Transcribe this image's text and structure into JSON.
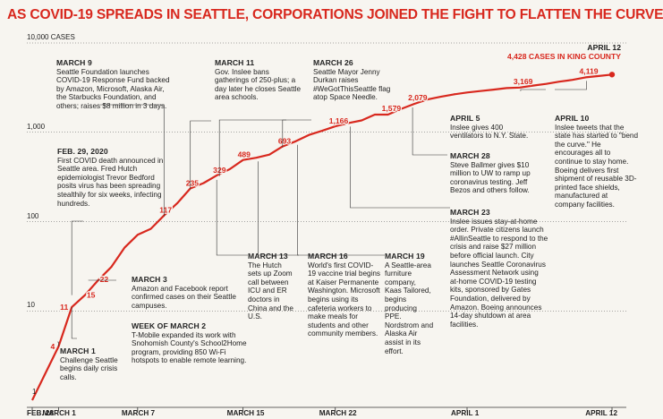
{
  "title": "AS COVID-19 SPREADS IN SEATTLE, CORPORATIONS JOINED THE FIGHT TO FLATTEN THE CURVE",
  "colors": {
    "accent": "#d8281e",
    "text": "#1a1a1a",
    "grid": "#555555",
    "background": "#f7f5f0"
  },
  "end_label": {
    "date": "APRIL 12",
    "text": "4,428 CASES IN KING COUNTY"
  },
  "chart_data": {
    "type": "line",
    "title": "AS COVID-19 SPREADS IN SEATTLE, CORPORATIONS JOINED THE FIGHT TO FLATTEN THE CURVE",
    "xlabel": "",
    "ylabel": "",
    "yscale": "log",
    "ylim": [
      1,
      10000
    ],
    "y_tick_labels": [
      "10,000 CASES",
      "1,000",
      "100",
      "10",
      "1"
    ],
    "x_tick_labels": [
      "FEB. 28",
      "MARCH 1",
      "MARCH 7",
      "MARCH 15",
      "MARCH 22",
      "APRIL 1",
      "APRIL 12"
    ],
    "grid": "horizontal dotted",
    "series": [
      {
        "x": [
          "2020-02-28",
          "2020-03-01",
          "2020-03-02",
          "2020-03-03",
          "2020-03-04",
          "2020-03-05",
          "2020-03-06",
          "2020-03-07",
          "2020-03-08",
          "2020-03-09",
          "2020-03-10",
          "2020-03-11",
          "2020-03-12",
          "2020-03-13",
          "2020-03-14",
          "2020-03-15",
          "2020-03-16",
          "2020-03-17",
          "2020-03-18",
          "2020-03-19",
          "2020-03-20",
          "2020-03-21",
          "2020-03-22",
          "2020-03-23",
          "2020-03-24",
          "2020-03-25",
          "2020-03-26",
          "2020-03-27",
          "2020-03-28",
          "2020-03-29",
          "2020-03-30",
          "2020-03-31",
          "2020-04-01",
          "2020-04-02",
          "2020-04-03",
          "2020-04-04",
          "2020-04-05",
          "2020-04-06",
          "2020-04-07",
          "2020-04-08",
          "2020-04-09",
          "2020-04-10",
          "2020-04-11",
          "2020-04-12"
        ],
        "values": [
          1,
          4,
          11,
          15,
          22,
          31,
          51,
          71,
          83,
          117,
          160,
          235,
          270,
          329,
          387,
          489,
          518,
          562,
          693,
          793,
          934,
          1040,
          1166,
          1270,
          1359,
          1577,
          1579,
          1828,
          2079,
          2330,
          2496,
          2656,
          2787,
          2898,
          3007,
          3126,
          3169,
          3331,
          3486,
          3688,
          3863,
          4119,
          4262,
          4428
        ],
        "labeled_points": [
          {
            "date": "2020-02-28",
            "value": 1,
            "label": ""
          },
          {
            "date": "2020-03-01",
            "value": 4,
            "label": "4"
          },
          {
            "date": "2020-03-02",
            "value": 11,
            "label": "11"
          },
          {
            "date": "2020-03-03",
            "value": 15,
            "label": "15"
          },
          {
            "date": "2020-03-04",
            "value": 22,
            "label": "22"
          },
          {
            "date": "2020-03-09",
            "value": 117,
            "label": "117"
          },
          {
            "date": "2020-03-11",
            "value": 235,
            "label": "235"
          },
          {
            "date": "2020-03-13",
            "value": 329,
            "label": "329"
          },
          {
            "date": "2020-03-15",
            "value": 489,
            "label": "489"
          },
          {
            "date": "2020-03-18",
            "value": 693,
            "label": "693"
          },
          {
            "date": "2020-03-22",
            "value": 1166,
            "label": "1,166"
          },
          {
            "date": "2020-03-26",
            "value": 1579,
            "label": "1,579"
          },
          {
            "date": "2020-03-28",
            "value": 2079,
            "label": "2,079"
          },
          {
            "date": "2020-04-05",
            "value": 3169,
            "label": "3,169"
          },
          {
            "date": "2020-04-10",
            "value": 4119,
            "label": "4,119"
          },
          {
            "date": "2020-04-12",
            "value": 4428,
            "label": ""
          }
        ]
      }
    ],
    "annotations": [
      {
        "head": "MARCH 9",
        "body": "Seattle Foundation launches COVID-19 Response Fund backed by Amazon, Microsoft, Alaska Air, the Starbucks Foundation, and others; raises $8 million in 3 days."
      },
      {
        "head": "MARCH 11",
        "body": "Gov. Inslee bans gatherings of 250-plus; a day later he closes Seattle area schools."
      },
      {
        "head": "MARCH 26",
        "body": "Seattle Mayor Jenny Durkan raises #WeGotThisSeattle flag atop Space Needle."
      },
      {
        "head": "FEB. 29, 2020",
        "body": "First COVID death announced in Seattle area. Fred Hutch epidemiologist Trevor Bedford posits virus has been spreading stealthily for six weeks, infecting hundreds."
      },
      {
        "head": "APRIL 5",
        "body": "Inslee gives 400 ventilators to N.Y. State."
      },
      {
        "head": "APRIL 10",
        "body": "Inslee tweets that the state has started to \"bend the curve.\" He encourages all to continue to stay home. Boeing delivers first shipment of reusable 3D-printed face shields, manufactured at company facilities."
      },
      {
        "head": "MARCH 28",
        "body": "Steve Ballmer gives $10 million to UW to ramp up coronavirus testing. Jeff Bezos and others follow."
      },
      {
        "head": "MARCH 23",
        "body": "Inslee issues stay-at-home order. Private citizens launch #AllinSeattle to respond to the crisis and raise $27 million before official launch. City launches Seattle Coronavirus Assessment Network using at-home COVID-19 testing kits, sponsored by Gates Foundation, delivered by Amazon. Boeing announces 14-day shutdown at area facilities."
      },
      {
        "head": "MARCH 3",
        "body": "Amazon and Facebook report confirmed cases on their Seattle campuses."
      },
      {
        "head": "WEEK OF MARCH 2",
        "body": "T-Mobile expanded its work with Snohomish County's School2Home program, providing 850 Wi-Fi hotspots to enable remote learning."
      },
      {
        "head": "MARCH 1",
        "body": "Challenge Seattle begins daily crisis calls."
      },
      {
        "head": "MARCH 13",
        "body": "The Hutch sets up Zoom call between ICU and ER doctors in China and the U.S."
      },
      {
        "head": "MARCH 16",
        "body": "World's first COVID-19 vaccine trial begins at Kaiser Permanente Washington. Microsoft begins using its cafeteria workers to make meals for students and other community members."
      },
      {
        "head": "MARCH 19",
        "body": "A Seattle-area furniture company, Kaas Tailored, begins producing PPE. Nordstrom and Alaska Air assist in its effort."
      }
    ]
  }
}
